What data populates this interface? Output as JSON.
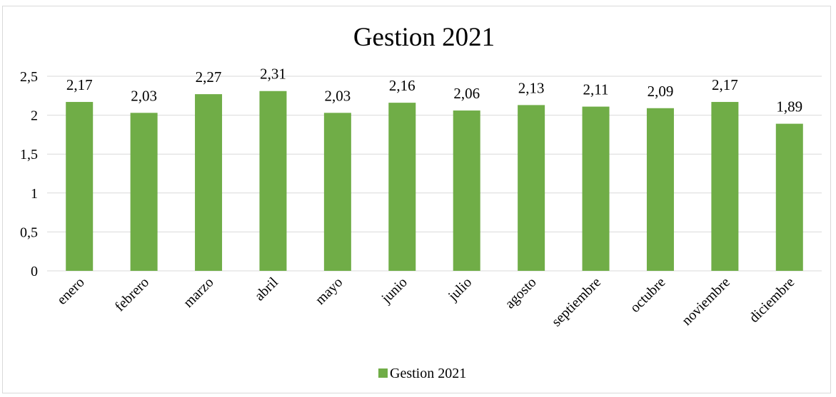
{
  "chart_data": {
    "type": "bar",
    "title": "Gestion 2021",
    "categories": [
      "enero",
      "febrero",
      "marzo",
      "abril",
      "mayo",
      "junio",
      "julio",
      "agosto",
      "septiembre",
      "octubre",
      "noviembre",
      "diciembre"
    ],
    "series": [
      {
        "name": "Gestion 2021",
        "values": [
          2.17,
          2.03,
          2.27,
          2.31,
          2.03,
          2.16,
          2.06,
          2.13,
          2.11,
          2.09,
          2.17,
          1.89
        ],
        "data_labels": [
          "2,17",
          "2,03",
          "2,27",
          "2,31",
          "2,03",
          "2,16",
          "2,06",
          "2,13",
          "2,11",
          "2,09",
          "2,17",
          "1,89"
        ]
      }
    ],
    "y_ticks": [
      "0",
      "0,5",
      "1",
      "1,5",
      "2",
      "2,5"
    ],
    "y_tick_values": [
      0,
      0.5,
      1,
      1.5,
      2,
      2.5
    ],
    "ylim": [
      0,
      2.5
    ],
    "grid": true,
    "legend": "bottom",
    "colors": {
      "bar": "#70ad47",
      "grid": "#d9d9d9",
      "frame": "#d9d9d9"
    }
  }
}
